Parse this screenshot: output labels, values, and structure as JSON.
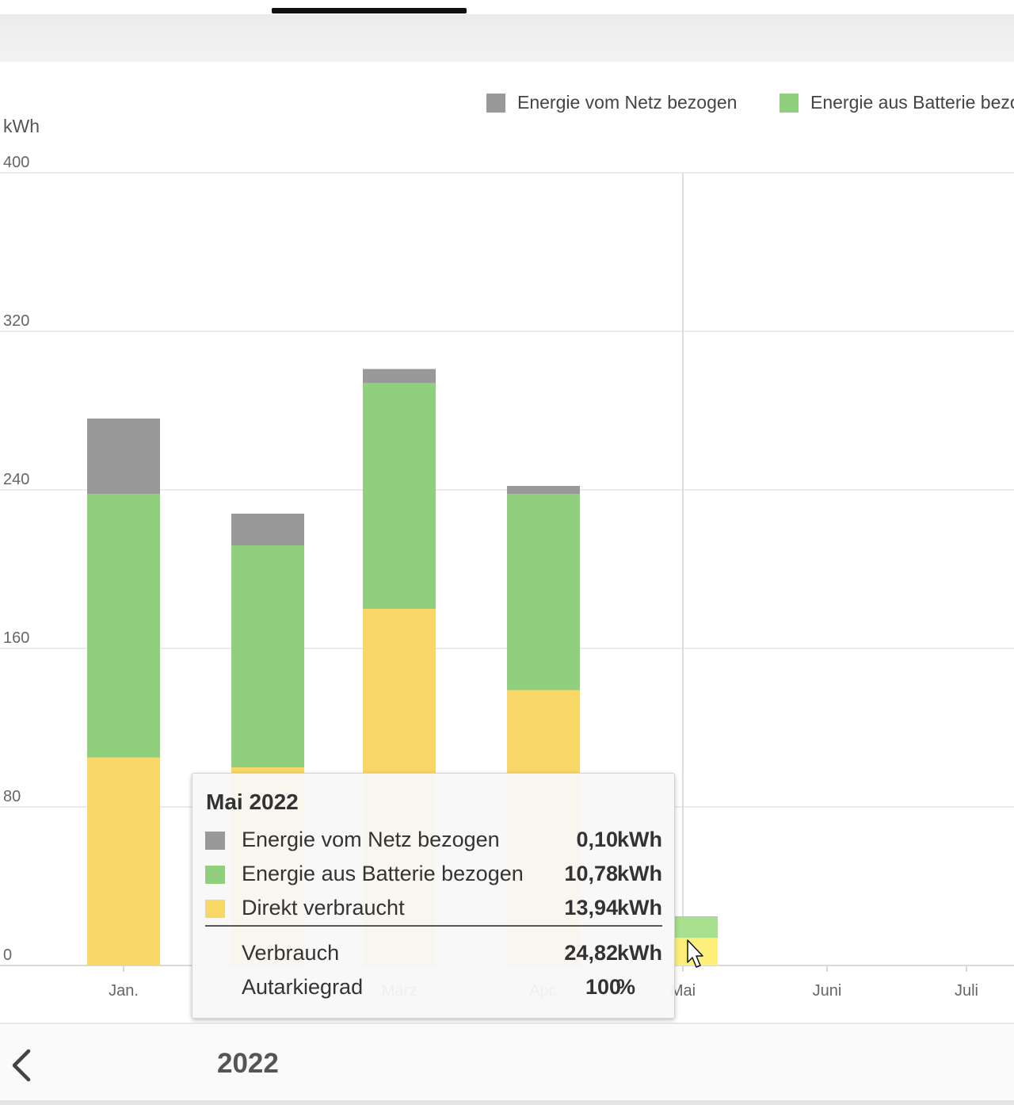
{
  "chart_data": {
    "type": "bar",
    "stacked": true,
    "y_unit": "kWh",
    "ylim": [
      0,
      400
    ],
    "yticks": [
      0,
      80,
      160,
      240,
      320,
      400
    ],
    "categories": [
      "Jan.",
      "Feb.",
      "März",
      "Apr.",
      "Mai",
      "Juni",
      "Juli"
    ],
    "series": [
      {
        "name": "Direkt verbraucht",
        "color": "#f8d766",
        "values": [
          105,
          100,
          180,
          139,
          13.94,
          null,
          null
        ]
      },
      {
        "name": "Energie aus Batterie bezogen",
        "color": "#8fcf7d",
        "values": [
          133,
          112,
          114,
          99,
          10.78,
          null,
          null
        ]
      },
      {
        "name": "Energie vom Netz bezogen",
        "color": "#999999",
        "values": [
          38,
          16,
          7,
          4,
          0.1,
          null,
          null
        ]
      }
    ],
    "legend": {
      "placement": "top",
      "entries": [
        {
          "label": "Energie vom Netz bezogen",
          "color": "#999999"
        },
        {
          "label": "Energie aus Batterie bezogen",
          "color": "#8fcf7d"
        }
      ]
    },
    "grid": true,
    "hover_index": 4
  },
  "tooltip": {
    "title": "Mai 2022",
    "rows": [
      {
        "label": "Energie vom Netz bezogen",
        "value": "0,10",
        "unit": "kWh",
        "color": "#999999"
      },
      {
        "label": "Energie aus Batterie bezogen",
        "value": "10,78",
        "unit": "kWh",
        "color": "#8fcf7d"
      },
      {
        "label": "Direkt verbraucht",
        "value": "13,94",
        "unit": "kWh",
        "color": "#f8d766"
      }
    ],
    "totals": [
      {
        "label": "Verbrauch",
        "value": "24,82",
        "unit": "kWh"
      },
      {
        "label": "Autarkiegrad",
        "value": "100",
        "unit": "%"
      }
    ]
  },
  "footer": {
    "year": "2022",
    "back_icon": "chevron-left-icon"
  }
}
